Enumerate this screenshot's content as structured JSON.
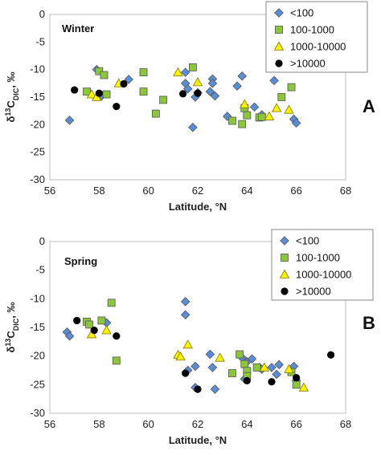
{
  "chart_data": [
    {
      "type": "scatter",
      "title": "Winter",
      "panel_label": "A",
      "xlabel": "Latitude, °N",
      "ylabel_parts": {
        "delta": "δ",
        "sup": "13",
        "base": "C",
        "sub": "DIC",
        "unit": ", ‰"
      },
      "xlim": [
        56,
        68
      ],
      "ylim": [
        -30,
        0
      ],
      "xticks": [
        "56",
        "58",
        "60",
        "62",
        "64",
        "66",
        "68"
      ],
      "yticks": [
        "0",
        "-5",
        "-10",
        "-15",
        "-20",
        "-25",
        "-30"
      ],
      "grid": false,
      "legend_position": "top-right",
      "series": [
        {
          "name": "<100",
          "marker": "diamond",
          "color": "#5B8DD6",
          "points": [
            [
              56.8,
              -19.2
            ],
            [
              57.9,
              -10.0
            ],
            [
              58.1,
              -14.8
            ],
            [
              59.2,
              -11.8
            ],
            [
              61.5,
              -10.5
            ],
            [
              61.5,
              -12.5
            ],
            [
              61.6,
              -13.5
            ],
            [
              61.8,
              -20.5
            ],
            [
              61.9,
              -15.0
            ],
            [
              62.0,
              -14.2
            ],
            [
              62.5,
              -14.0
            ],
            [
              62.6,
              -11.7
            ],
            [
              62.6,
              -12.5
            ],
            [
              62.7,
              -14.8
            ],
            [
              63.6,
              -13.0
            ],
            [
              63.8,
              -11.2
            ],
            [
              63.2,
              -18.5
            ],
            [
              64.3,
              -16.8
            ],
            [
              64.6,
              -18.2
            ],
            [
              65.1,
              -12.0
            ],
            [
              65.9,
              -19.0
            ],
            [
              66.0,
              -19.7
            ]
          ]
        },
        {
          "name": "100-1000",
          "marker": "square",
          "color": "#8CC63F",
          "points": [
            [
              57.5,
              -14.0
            ],
            [
              58.0,
              -10.3
            ],
            [
              58.2,
              -11.0
            ],
            [
              58.3,
              -14.5
            ],
            [
              59.8,
              -10.5
            ],
            [
              59.8,
              -14.0
            ],
            [
              60.3,
              -18.0
            ],
            [
              60.6,
              -15.5
            ],
            [
              61.8,
              -9.6
            ],
            [
              63.4,
              -19.3
            ],
            [
              63.8,
              -19.9
            ],
            [
              63.9,
              -17.0
            ],
            [
              64.0,
              -18.3
            ],
            [
              64.5,
              -18.7
            ],
            [
              64.6,
              -18.6
            ],
            [
              65.4,
              -15.0
            ],
            [
              65.8,
              -13.2
            ]
          ]
        },
        {
          "name": "1000-10000",
          "marker": "triangle",
          "color": "#FFF200",
          "points": [
            [
              57.7,
              -14.5
            ],
            [
              57.9,
              -15.0
            ],
            [
              58.8,
              -12.5
            ],
            [
              61.2,
              -10.5
            ],
            [
              62.0,
              -12.3
            ],
            [
              63.9,
              -16.3
            ],
            [
              64.9,
              -18.5
            ],
            [
              65.2,
              -17.0
            ],
            [
              65.7,
              -17.3
            ]
          ]
        },
        {
          "name": ">10000",
          "marker": "circle",
          "color": "#000000",
          "points": [
            [
              57.0,
              -13.7
            ],
            [
              58.0,
              -14.3
            ],
            [
              58.7,
              -16.7
            ],
            [
              59.0,
              -12.6
            ],
            [
              61.4,
              -14.4
            ],
            [
              62.0,
              -14.3
            ]
          ]
        }
      ]
    },
    {
      "type": "scatter",
      "title": "Spring",
      "panel_label": "B",
      "xlabel": "Latitude, °N",
      "ylabel_parts": {
        "delta": "δ",
        "sup": "13",
        "base": "C",
        "sub": "DIC",
        "unit": ", ‰"
      },
      "xlim": [
        56,
        68
      ],
      "ylim": [
        -30,
        0
      ],
      "xticks": [
        "56",
        "58",
        "60",
        "62",
        "64",
        "66",
        "68"
      ],
      "yticks": [
        "0",
        "-5",
        "-10",
        "-15",
        "-20",
        "-25",
        "-30"
      ],
      "grid": false,
      "legend_position": "top-right",
      "series": [
        {
          "name": "<100",
          "marker": "diamond",
          "color": "#5B8DD6",
          "points": [
            [
              56.7,
              -15.8
            ],
            [
              56.8,
              -16.5
            ],
            [
              58.3,
              -14.2
            ],
            [
              61.5,
              -10.5
            ],
            [
              61.5,
              -12.8
            ],
            [
              61.6,
              -22.5
            ],
            [
              61.9,
              -25.5
            ],
            [
              61.9,
              -21.8
            ],
            [
              62.5,
              -19.7
            ],
            [
              62.6,
              -22.0
            ],
            [
              62.7,
              -25.8
            ],
            [
              63.8,
              -20.3
            ],
            [
              63.9,
              -24.0
            ],
            [
              64.0,
              -21.0
            ],
            [
              64.2,
              -20.5
            ],
            [
              64.5,
              -22.0
            ],
            [
              64.6,
              -22.3
            ],
            [
              65.0,
              -22.0
            ],
            [
              65.2,
              -23.2
            ],
            [
              65.3,
              -21.5
            ],
            [
              65.9,
              -21.8
            ],
            [
              66.0,
              -24.3
            ]
          ]
        },
        {
          "name": "100-1000",
          "marker": "square",
          "color": "#8CC63F",
          "points": [
            [
              57.5,
              -14.0
            ],
            [
              57.6,
              -14.5
            ],
            [
              58.1,
              -13.8
            ],
            [
              58.5,
              -10.7
            ],
            [
              58.7,
              -20.8
            ],
            [
              63.4,
              -23.0
            ],
            [
              63.7,
              -19.7
            ],
            [
              63.9,
              -21.4
            ],
            [
              64.0,
              -22.6
            ],
            [
              64.0,
              -23.5
            ],
            [
              64.4,
              -22.0
            ],
            [
              65.8,
              -22.8
            ],
            [
              66.0,
              -25.0
            ]
          ]
        },
        {
          "name": "1000-10000",
          "marker": "triangle",
          "color": "#FFF200",
          "points": [
            [
              57.7,
              -16.2
            ],
            [
              58.3,
              -15.5
            ],
            [
              61.2,
              -19.8
            ],
            [
              61.3,
              -20.1
            ],
            [
              61.6,
              -18.0
            ],
            [
              62.9,
              -20.3
            ],
            [
              64.7,
              -22.0
            ],
            [
              65.7,
              -22.3
            ],
            [
              66.3,
              -25.5
            ]
          ]
        },
        {
          "name": ">10000",
          "marker": "circle",
          "color": "#000000",
          "points": [
            [
              57.1,
              -13.8
            ],
            [
              57.8,
              -15.5
            ],
            [
              58.7,
              -16.5
            ],
            [
              61.5,
              -23.0
            ],
            [
              62.0,
              -25.8
            ],
            [
              64.0,
              -24.3
            ],
            [
              65.0,
              -24.5
            ],
            [
              66.0,
              -23.8
            ],
            [
              67.4,
              -19.8
            ]
          ]
        }
      ]
    }
  ]
}
